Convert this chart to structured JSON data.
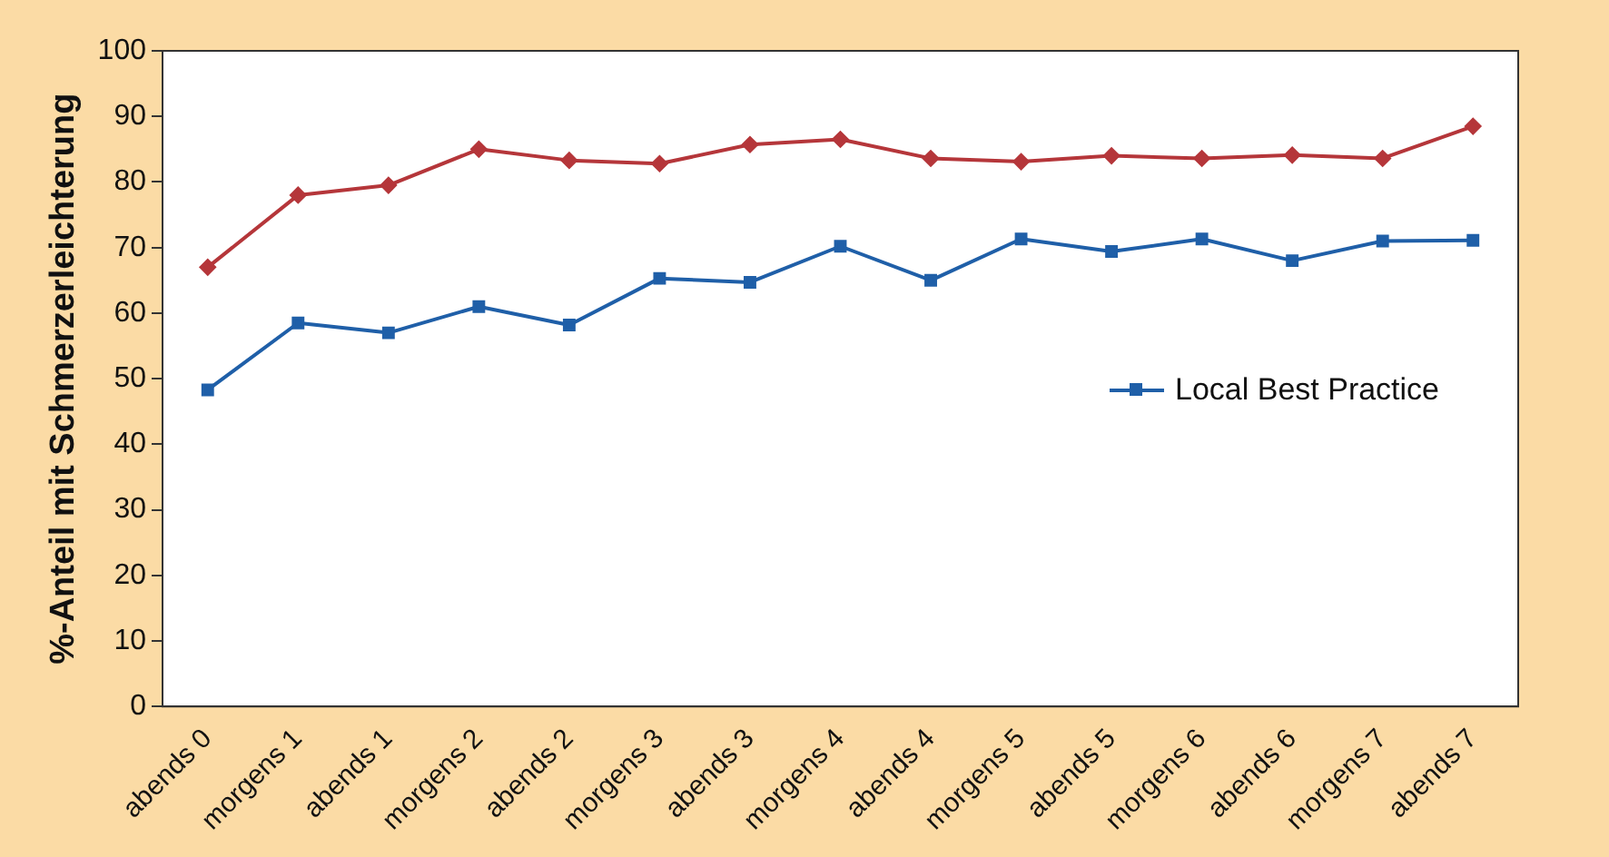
{
  "chart_data": {
    "type": "line",
    "ylabel": "%-Anteil mit Schmerzerleichterung",
    "categories": [
      "abends 0",
      "morgens 1",
      "abends 1",
      "morgens 2",
      "abends 2",
      "morgens 3",
      "abends 3",
      "morgens 4",
      "abends 4",
      "morgens 5",
      "abends 5",
      "morgens 6",
      "abends 6",
      "morgens 7",
      "abends 7"
    ],
    "series": [
      {
        "color": "#b5363a",
        "marker": "diamond",
        "values": [
          67,
          78,
          79.5,
          85,
          83.3,
          82.8,
          85.7,
          86.5,
          83.6,
          83.1,
          84,
          83.6,
          84.1,
          83.6,
          88.5
        ]
      },
      {
        "name": "Local Best Practice",
        "color": "#1f5fa8",
        "marker": "square",
        "values": [
          48.3,
          58.5,
          57,
          61,
          58.2,
          65.3,
          64.7,
          70.2,
          65,
          71.3,
          69.4,
          71.3,
          68,
          71,
          71.1
        ]
      }
    ],
    "ylim": [
      0,
      100
    ],
    "yticks": [
      0,
      10,
      20,
      30,
      40,
      50,
      60,
      70,
      80,
      90,
      100
    ],
    "grid": false,
    "legend": "right",
    "line_style": "solid"
  }
}
